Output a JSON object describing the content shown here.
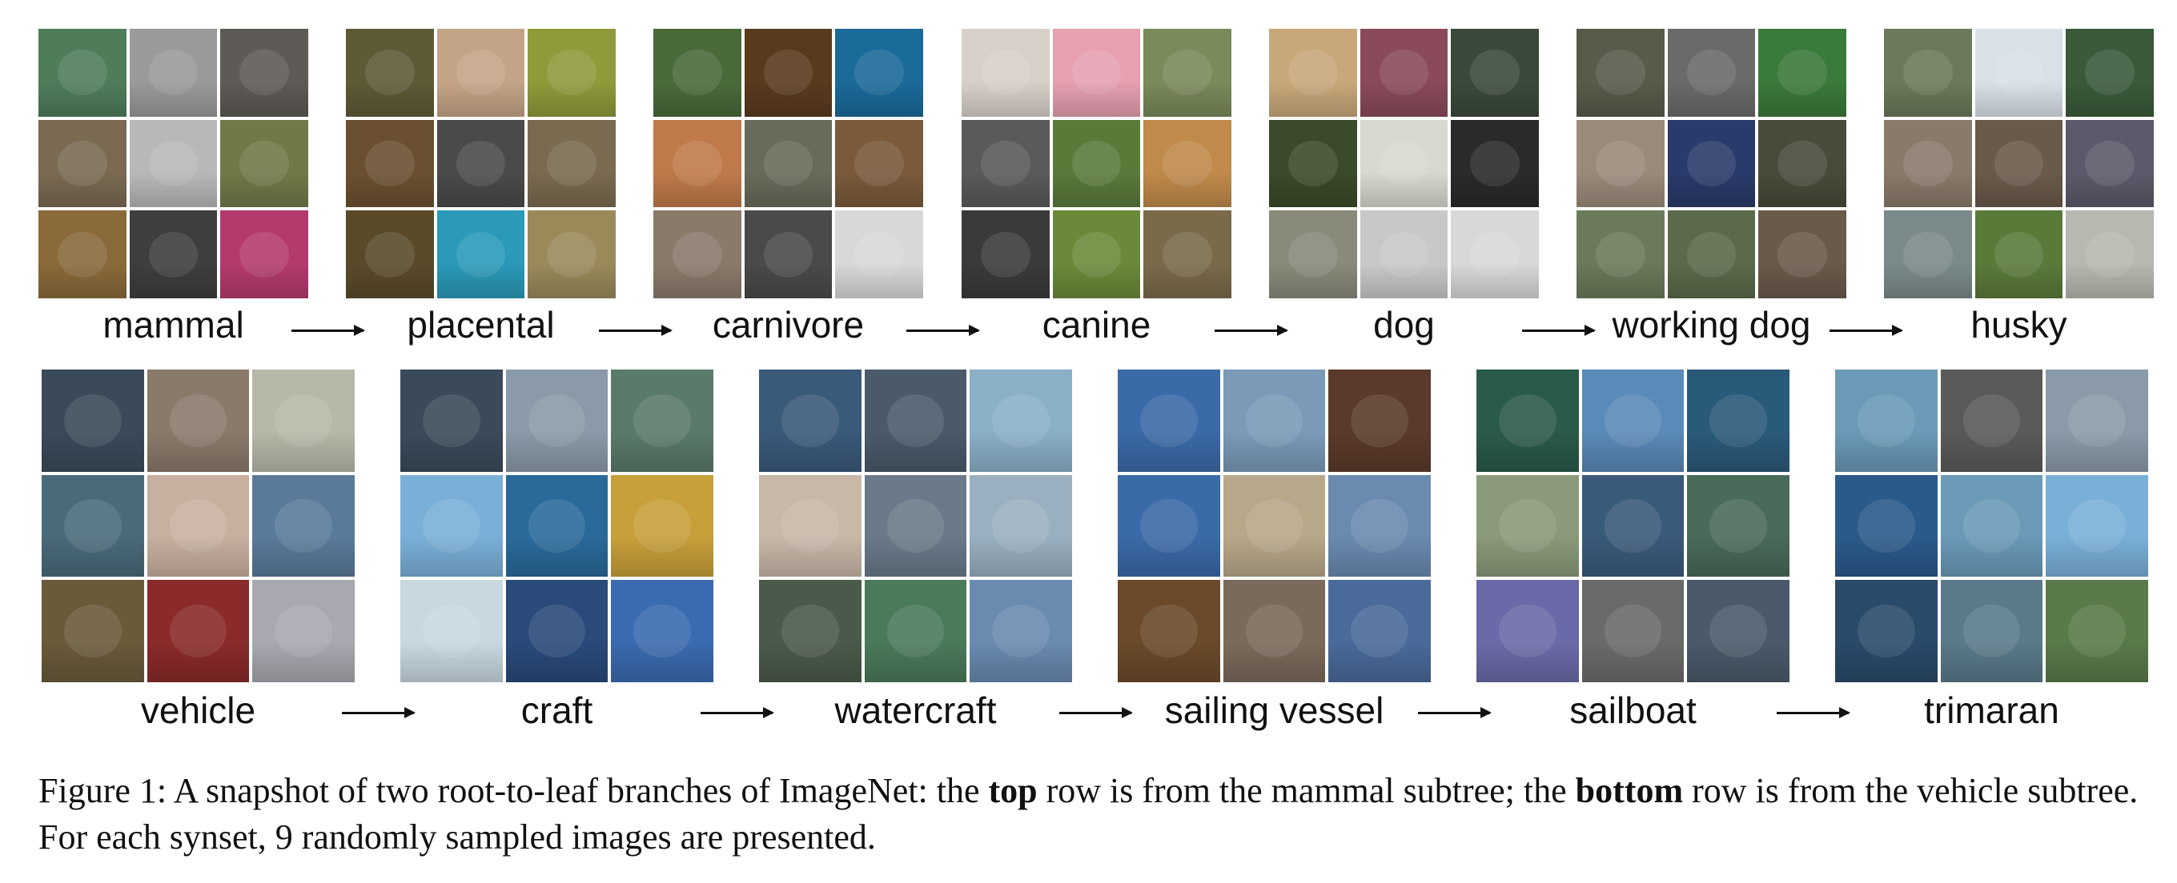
{
  "top_row": {
    "synsets": [
      "mammal",
      "placental",
      "carnivore",
      "canine",
      "dog",
      "working dog",
      "husky"
    ]
  },
  "bottom_row": {
    "synsets": [
      "vehicle",
      "craft",
      "watercraft",
      "sailing vessel",
      "sailboat",
      "trimaran"
    ]
  },
  "caption": {
    "figure_label": "Figure 1:",
    "text_1": " A snapshot of two root-to-leaf branches of ImageNet: the ",
    "bold_1": "top",
    "text_2": " row is from the mammal subtree; the ",
    "bold_2": "bottom",
    "text_3": " row is from the vehicle subtree. For each synset, 9 randomly sampled images are presented."
  }
}
